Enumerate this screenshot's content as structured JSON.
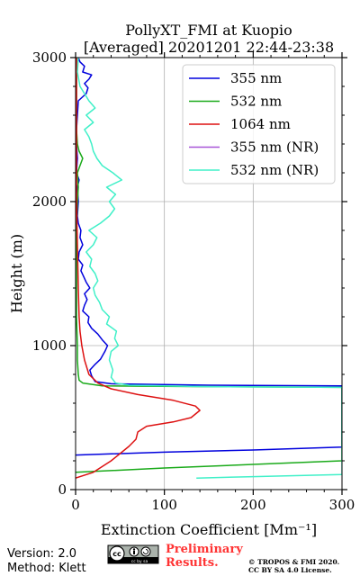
{
  "chart_data": {
    "type": "line",
    "title": "PollyXT_FMI at Kuopio",
    "subtitle": "[Averaged] 20201201 22:44-23:38",
    "xlabel": "Extinction Coefficient [Mm⁻¹]",
    "ylabel": "Height (m)",
    "xlim": [
      0,
      300
    ],
    "ylim": [
      0,
      3000
    ],
    "xticks": [
      0,
      100,
      200,
      300
    ],
    "yticks": [
      0,
      1000,
      2000,
      3000
    ],
    "grid": true,
    "legend_position": "top-right",
    "series": [
      {
        "name": "355 nm",
        "color": "#0000dd",
        "points": [
          [
            0,
            240
          ],
          [
            100,
            260
          ],
          [
            200,
            275
          ],
          [
            300,
            295
          ],
          [
            300,
            720
          ],
          [
            150,
            725
          ],
          [
            40,
            735
          ],
          [
            22,
            750
          ],
          [
            18,
            790
          ],
          [
            16,
            830
          ],
          [
            22,
            870
          ],
          [
            28,
            905
          ],
          [
            33,
            960
          ],
          [
            36,
            1000
          ],
          [
            30,
            1040
          ],
          [
            25,
            1080
          ],
          [
            18,
            1120
          ],
          [
            14,
            1160
          ],
          [
            15,
            1200
          ],
          [
            8,
            1240
          ],
          [
            10,
            1280
          ],
          [
            13,
            1320
          ],
          [
            10,
            1360
          ],
          [
            16,
            1400
          ],
          [
            12,
            1440
          ],
          [
            9,
            1480
          ],
          [
            6,
            1520
          ],
          [
            8,
            1560
          ],
          [
            3,
            1600
          ],
          [
            4,
            1650
          ],
          [
            8,
            1700
          ],
          [
            5,
            1750
          ],
          [
            6,
            1800
          ],
          [
            3,
            1850
          ],
          [
            2,
            1900
          ],
          [
            3,
            2000
          ],
          [
            2,
            2100
          ],
          [
            4,
            2150
          ],
          [
            1,
            2200
          ],
          [
            2,
            2300
          ],
          [
            1,
            2400
          ],
          [
            1,
            2500
          ],
          [
            2,
            2600
          ],
          [
            3,
            2700
          ],
          [
            12,
            2750
          ],
          [
            14,
            2790
          ],
          [
            10,
            2820
          ],
          [
            15,
            2850
          ],
          [
            18,
            2880
          ],
          [
            8,
            2900
          ],
          [
            10,
            2940
          ],
          [
            5,
            2970
          ],
          [
            3,
            3000
          ]
        ]
      },
      {
        "name": "532 nm",
        "color": "#1aaa1a",
        "points": [
          [
            0,
            120
          ],
          [
            100,
            150
          ],
          [
            200,
            175
          ],
          [
            300,
            200
          ],
          [
            300,
            710
          ],
          [
            150,
            715
          ],
          [
            30,
            720
          ],
          [
            8,
            740
          ],
          [
            4,
            760
          ],
          [
            3,
            800
          ],
          [
            2,
            900
          ],
          [
            2,
            1000
          ],
          [
            1,
            1200
          ],
          [
            1,
            1500
          ],
          [
            1,
            1800
          ],
          [
            2,
            2000
          ],
          [
            3,
            2100
          ],
          [
            2,
            2200
          ],
          [
            5,
            2250
          ],
          [
            8,
            2300
          ],
          [
            4,
            2350
          ],
          [
            2,
            2400
          ],
          [
            1,
            2500
          ],
          [
            1,
            2700
          ],
          [
            1,
            3000
          ]
        ]
      },
      {
        "name": "1064 nm",
        "color": "#dd1111",
        "points": [
          [
            0,
            80
          ],
          [
            20,
            120
          ],
          [
            40,
            200
          ],
          [
            60,
            300
          ],
          [
            68,
            350
          ],
          [
            70,
            400
          ],
          [
            80,
            440
          ],
          [
            110,
            470
          ],
          [
            130,
            500
          ],
          [
            140,
            550
          ],
          [
            135,
            580
          ],
          [
            110,
            620
          ],
          [
            70,
            660
          ],
          [
            40,
            700
          ],
          [
            25,
            740
          ],
          [
            15,
            800
          ],
          [
            10,
            900
          ],
          [
            7,
            1000
          ],
          [
            5,
            1100
          ],
          [
            4,
            1200
          ],
          [
            3,
            1400
          ],
          [
            2,
            1700
          ],
          [
            1,
            2000
          ],
          [
            1,
            2500
          ],
          [
            1,
            3000
          ]
        ]
      },
      {
        "name": "355 nm (NR)",
        "color": "#a855d8",
        "points": []
      },
      {
        "name": "532 nm (NR)",
        "color": "#40f0c8",
        "points": [
          [
            136,
            80
          ],
          [
            200,
            90
          ],
          [
            300,
            105
          ],
          [
            300,
            710
          ],
          [
            150,
            715
          ],
          [
            60,
            725
          ],
          [
            45,
            740
          ],
          [
            40,
            780
          ],
          [
            42,
            830
          ],
          [
            38,
            900
          ],
          [
            40,
            960
          ],
          [
            48,
            1000
          ],
          [
            44,
            1050
          ],
          [
            46,
            1100
          ],
          [
            35,
            1150
          ],
          [
            38,
            1200
          ],
          [
            30,
            1250
          ],
          [
            27,
            1300
          ],
          [
            22,
            1350
          ],
          [
            20,
            1400
          ],
          [
            25,
            1450
          ],
          [
            22,
            1500
          ],
          [
            16,
            1550
          ],
          [
            18,
            1600
          ],
          [
            12,
            1650
          ],
          [
            20,
            1700
          ],
          [
            24,
            1750
          ],
          [
            15,
            1800
          ],
          [
            28,
            1850
          ],
          [
            38,
            1900
          ],
          [
            44,
            1950
          ],
          [
            38,
            2000
          ],
          [
            45,
            2050
          ],
          [
            35,
            2100
          ],
          [
            52,
            2150
          ],
          [
            42,
            2200
          ],
          [
            30,
            2250
          ],
          [
            24,
            2300
          ],
          [
            20,
            2350
          ],
          [
            18,
            2400
          ],
          [
            15,
            2450
          ],
          [
            10,
            2500
          ],
          [
            20,
            2550
          ],
          [
            12,
            2600
          ],
          [
            22,
            2650
          ],
          [
            15,
            2700
          ],
          [
            10,
            2750
          ],
          [
            5,
            2800
          ],
          [
            2,
            2900
          ],
          [
            3,
            3000
          ]
        ]
      }
    ]
  },
  "footer": {
    "version": "Version: 2.0",
    "method": "Method: Klett",
    "preliminary_line1": "Preliminary",
    "preliminary_line2": "Results.",
    "copyright_line1": "© TROPOS & FMI 2020.",
    "copyright_line2": "CC BY SA 4.0 License.",
    "license_badge": "cc by sa",
    "license_icons": [
      "cc",
      "by",
      "sa"
    ]
  },
  "colors": {
    "axis": "#000000",
    "grid": "#b0b0b0",
    "preliminary": "#ff3333"
  }
}
